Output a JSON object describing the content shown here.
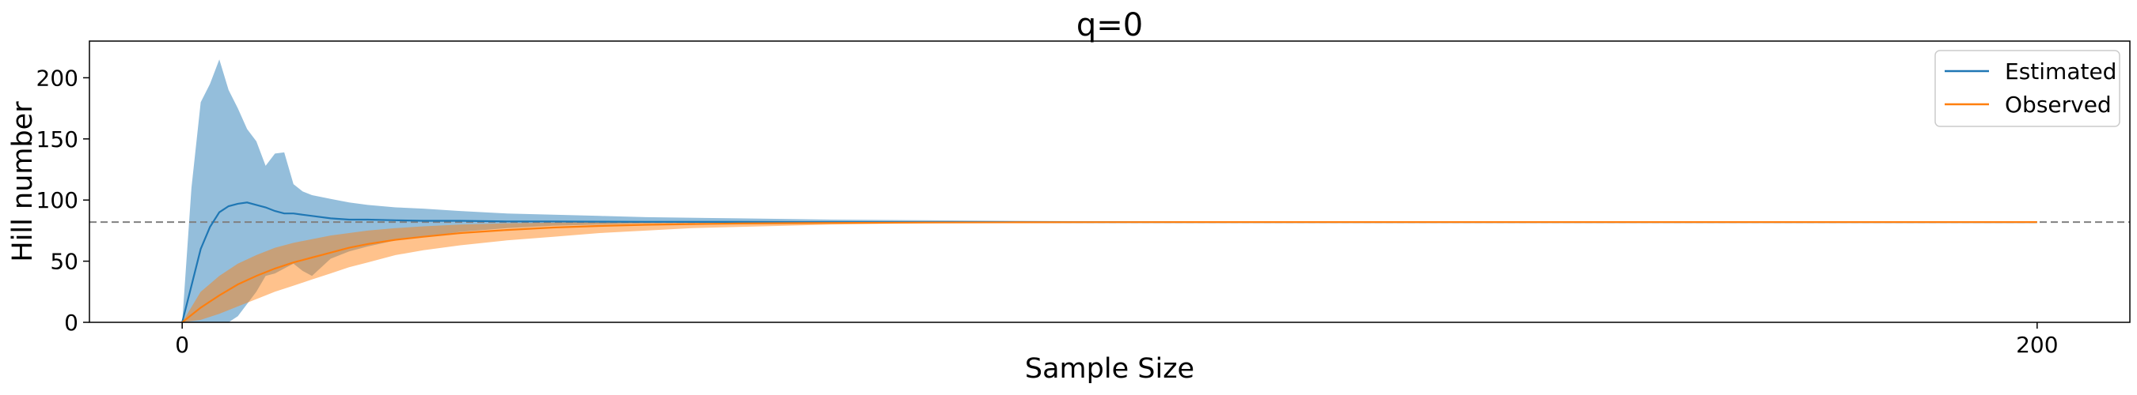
{
  "chart_data": {
    "type": "line",
    "title": "q=0",
    "xlabel": "Sample Size",
    "ylabel": "Hill number",
    "xlim": [
      -10,
      210
    ],
    "ylim": [
      0,
      230
    ],
    "xticks": [
      0,
      200
    ],
    "yticks": [
      0,
      50,
      100,
      150,
      200
    ],
    "grid": false,
    "legend_position": "top-right",
    "reference_line": {
      "y": 82,
      "style": "dashed",
      "color": "#808080"
    },
    "series": [
      {
        "name": "Estimated",
        "color": "#1f77b4",
        "band_color": "#1f77b4",
        "x": [
          0,
          1,
          2,
          3,
          4,
          5,
          6,
          7,
          8,
          9,
          10,
          11,
          12,
          13,
          14,
          16,
          18,
          20,
          23,
          26,
          30,
          35,
          40,
          45,
          50,
          60,
          70,
          80,
          100,
          200
        ],
        "y": [
          0,
          30,
          60,
          78,
          90,
          95,
          97,
          98,
          96,
          94,
          91,
          89,
          89,
          88,
          87,
          85,
          84,
          84,
          83.5,
          83,
          83,
          82.5,
          82.5,
          82.3,
          82.2,
          82.1,
          82,
          82,
          82,
          82
        ],
        "lower": [
          0,
          0,
          0,
          0,
          0,
          0,
          5,
          15,
          25,
          38,
          40,
          44,
          48,
          42,
          38,
          52,
          58,
          62,
          67,
          70,
          74,
          77,
          79,
          80,
          81,
          81.5,
          81.8,
          82,
          82,
          82
        ],
        "upper": [
          0,
          110,
          180,
          195,
          215,
          190,
          175,
          158,
          148,
          128,
          138,
          139,
          113,
          107,
          104,
          101,
          98,
          96,
          94,
          93,
          91,
          89,
          88,
          87,
          86,
          85,
          84,
          83.5,
          82.5,
          82
        ]
      },
      {
        "name": "Observed",
        "color": "#ff7f0e",
        "band_color": "#ff7f0e",
        "x": [
          0,
          2,
          4,
          6,
          8,
          10,
          12,
          14,
          16,
          18,
          20,
          23,
          26,
          30,
          35,
          40,
          45,
          50,
          55,
          60,
          70,
          80,
          90,
          100,
          120,
          200
        ],
        "y": [
          0,
          12,
          22,
          31,
          38,
          44,
          49,
          53,
          57,
          61,
          64,
          67.5,
          70,
          73,
          75.5,
          77.5,
          78.8,
          79.8,
          80.4,
          80.8,
          81.3,
          81.6,
          81.8,
          81.9,
          82,
          82
        ],
        "lower": [
          0,
          2,
          7,
          13,
          19,
          25,
          30,
          35,
          40,
          45,
          49,
          55,
          59,
          63,
          67,
          70,
          73,
          75,
          77,
          78,
          80,
          81,
          81.5,
          81.8,
          82,
          82
        ],
        "upper": [
          0,
          25,
          38,
          48,
          55,
          61,
          65,
          68,
          71,
          73,
          75,
          77,
          78.5,
          80,
          81,
          81.5,
          82,
          82,
          82,
          82,
          82,
          82,
          82,
          82,
          82,
          82
        ]
      }
    ]
  }
}
